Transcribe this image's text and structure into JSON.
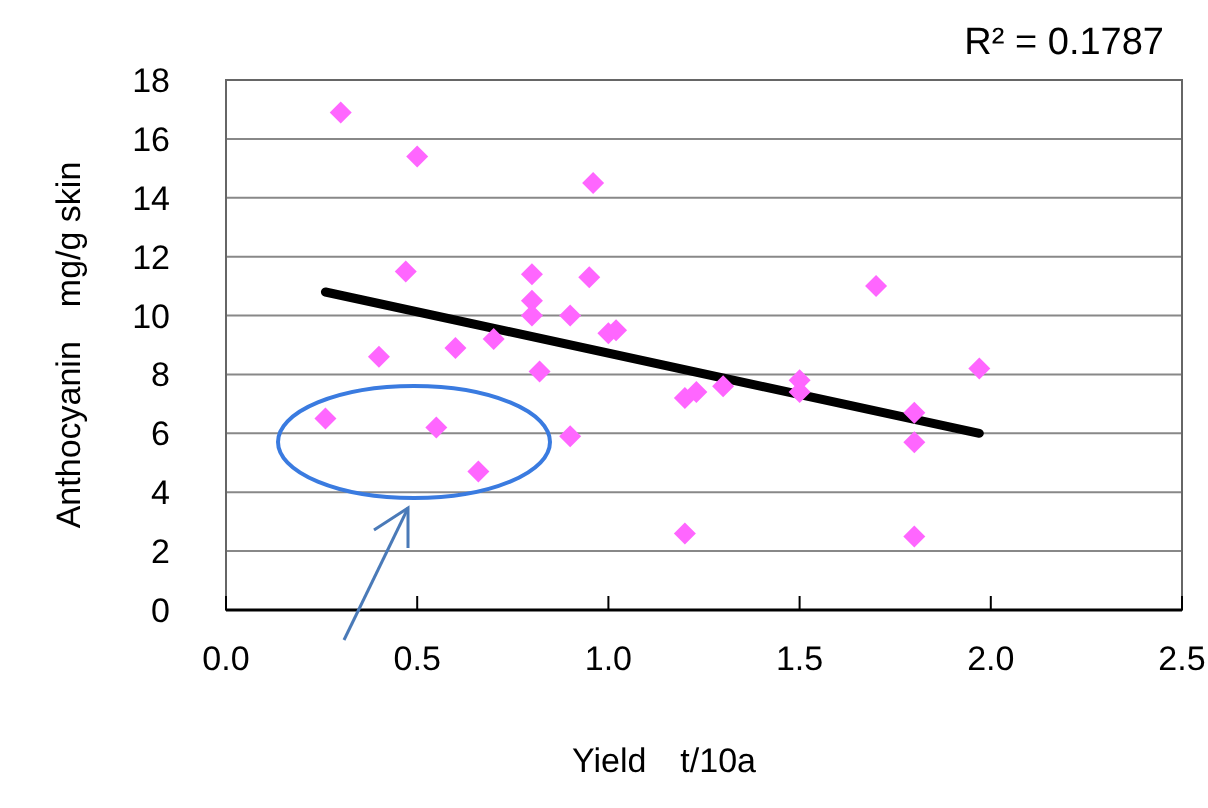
{
  "chart_data": {
    "type": "scatter",
    "xlabel": "Yield　t/10a",
    "ylabel": "Anthocyanin　mg/g skin",
    "annotations": [
      "R² = 0.1787"
    ],
    "xlim": [
      0,
      2.5
    ],
    "xticks": [
      {
        "value": 0,
        "label": "0.0"
      },
      {
        "value": 0.5,
        "label": "0.5"
      },
      {
        "value": 1,
        "label": "1.0"
      },
      {
        "value": 1.5,
        "label": "1.5"
      },
      {
        "value": 2,
        "label": "2.0"
      },
      {
        "value": 2.5,
        "label": "2.5"
      }
    ],
    "ylim": [
      0,
      18
    ],
    "yticks": [
      0,
      2,
      4,
      6,
      8,
      10,
      12,
      14,
      16,
      18
    ],
    "grid": "y",
    "series": [
      {
        "color": "#ff66ff",
        "marker": "diamond",
        "x": [
          0.3,
          0.5,
          0.96,
          0.47,
          0.8,
          0.95,
          0.8,
          0.8,
          0.9,
          1.0,
          1.02,
          0.7,
          0.6,
          0.4,
          0.82,
          0.26,
          0.55,
          0.9,
          0.66,
          1.7,
          1.97,
          1.2,
          1.23,
          1.3,
          1.5,
          1.5,
          1.8,
          1.8,
          1.2,
          1.8
        ],
        "values": [
          16.9,
          15.4,
          14.5,
          11.5,
          11.4,
          11.3,
          10.5,
          10.0,
          10.0,
          9.4,
          9.5,
          9.2,
          8.9,
          8.6,
          8.1,
          6.5,
          6.2,
          5.9,
          4.7,
          11.0,
          8.2,
          7.2,
          7.4,
          7.6,
          7.8,
          7.4,
          6.7,
          5.7,
          2.6,
          2.5
        ]
      },
      {
        "type": "line",
        "color": "#000000",
        "marker": "none",
        "x": [
          0.26,
          1.97
        ],
        "values": [
          10.8,
          6.0
        ]
      }
    ]
  }
}
